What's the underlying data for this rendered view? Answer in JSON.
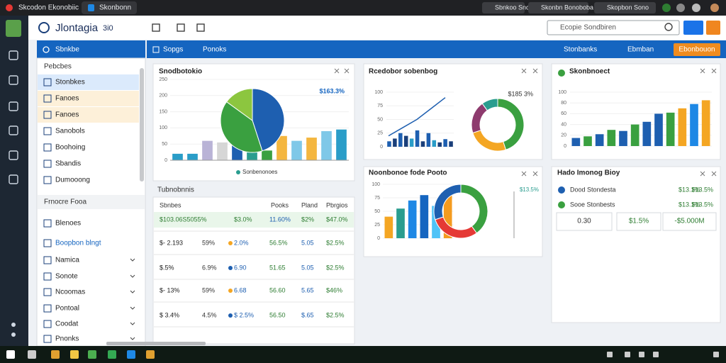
{
  "browser": {
    "tabs": [
      "Skcodon Ekonobiic",
      "Skonbonn"
    ],
    "right_tabs": [
      "Sbnkoo Snon",
      "Skonbn Bonoboba",
      "Skopbon Sono"
    ]
  },
  "header": {
    "title": "Jlontagia",
    "version": "3i0",
    "search": "Ecopie Sondbiren"
  },
  "toolbar": {
    "panel": "Sbnkbe",
    "tabs": [
      "Sopgs",
      "Ponoks"
    ],
    "right": [
      "Stonbanks",
      "Ebmban"
    ],
    "button": "Ebonbouon"
  },
  "sidebar": {
    "heading": "Pebcbes",
    "items": [
      "Stonbkes",
      "Fanoes",
      "Fanoes",
      "Sanobols",
      "Boohoing",
      "Sbandis",
      "Dumooong"
    ],
    "section": "Frnocre Fooa",
    "items2": [
      "Blenoes",
      "Boopbon blngt",
      "Namica",
      "Sonote",
      "Ncoomas",
      "Pontoal",
      "Coodat",
      "Pnonks"
    ]
  },
  "cards": [
    {
      "title": "Snodbotokio",
      "label": "$163.3%",
      "legend": "Sonbenonoes",
      "bars": {
        "values": [
          20,
          20,
          60,
          55,
          50,
          35,
          30,
          75,
          60,
          70,
          90,
          95
        ],
        "colors": [
          "#2a9dc8",
          "#2a9dc8",
          "#b9b3d6",
          "#d6d6d6",
          "#1e5fb0",
          "#2a9d8f",
          "#3aa040",
          "#f4b63f",
          "#7fc8e8",
          "#f4b63f",
          "#7fc8e8",
          "#2a9dc8"
        ],
        "ylim": [
          0,
          250
        ],
        "yticks": [
          0,
          50,
          100,
          150,
          200,
          250
        ]
      },
      "pie": {
        "values": [
          45,
          40,
          15
        ],
        "colors": [
          "#1e5fb0",
          "#3aa040",
          "#8cc63f"
        ]
      }
    },
    {
      "title": "Rcedobor sobenbog",
      "label": "$185 3%",
      "line": {
        "values": [
          20,
          35,
          50,
          70,
          90
        ],
        "color": "#1e5fb0"
      },
      "bars": {
        "values": [
          10,
          15,
          25,
          20,
          15,
          30,
          10,
          25,
          12,
          8,
          14,
          10
        ],
        "colors": [
          "#1e5fb0",
          "#1a3f7a",
          "#1e5fb0",
          "#1a3f7a",
          "#2a9dc8",
          "#1e5fb0",
          "#1a3f7a",
          "#1e5fb0",
          "#2a9dc8",
          "#1a3f7a",
          "#1e5fb0",
          "#1a3f7a"
        ],
        "ylim": [
          0,
          100
        ],
        "yticks": [
          0,
          25,
          50,
          75,
          100
        ]
      },
      "pie": {
        "values": [
          45,
          25,
          20,
          10
        ],
        "colors": [
          "#3aa040",
          "#f4a623",
          "#8e3b6e",
          "#2a9d8f"
        ]
      }
    },
    {
      "title": "Skonbnoect",
      "bars": {
        "values": [
          15,
          18,
          22,
          30,
          28,
          40,
          45,
          60,
          62,
          70,
          78,
          85
        ],
        "colors": [
          "#1e5fb0",
          "#3aa040",
          "#1e5fb0",
          "#3aa040",
          "#1e5fb0",
          "#3aa040",
          "#1e5fb0",
          "#1e5fb0",
          "#3aa040",
          "#f4a623",
          "#1e88e5",
          "#f4a623"
        ],
        "ylim": [
          0,
          100
        ],
        "yticks": [
          0,
          20,
          40,
          60,
          80,
          100
        ]
      }
    },
    {
      "title": "Noonbonoe fode Pooto",
      "label": "$13.5%",
      "bars": {
        "values": [
          40,
          55,
          70,
          80,
          60,
          90
        ],
        "colors": [
          "#f4a623",
          "#2a9d8f",
          "#1e88e5",
          "#1565c0",
          "#4fc3f7",
          "#f49b1f"
        ],
        "ylim": [
          0,
          100
        ],
        "yticks": [
          0,
          25,
          50,
          75,
          100
        ]
      },
      "pie": {
        "values": [
          40,
          30,
          30
        ],
        "colors": [
          "#3aa040",
          "#e53935",
          "#1e5fb0"
        ]
      }
    }
  ],
  "table": {
    "title": "Tubnobnnis",
    "headers": [
      "Sbnbes",
      "Pooks",
      "Pland",
      "Pbrgios"
    ],
    "rows": [
      [
        "$103.06S5055%",
        "$3.0%",
        "11.60%",
        "$2%",
        "$47.0%"
      ],
      [
        "$- 2.193",
        "59%",
        "2.0%",
        "56.5%",
        "5.05",
        "$2.5%"
      ],
      [
        "$.5%",
        "6.9%",
        "6.90",
        "51.65",
        "5.05",
        "$2.5%"
      ],
      [
        "$- 13%",
        "59%",
        "6.68",
        "56.60",
        "5.65",
        "$46%"
      ],
      [
        "$ 3.4%",
        "4.5%",
        "$ 2.5%",
        "56.50",
        "$.65",
        "$2.5%"
      ]
    ]
  },
  "summary": {
    "title": "Hado Imonog Bioy",
    "rows": [
      {
        "label": "Dood Stondesta",
        "value": "$13.1%",
        "change": "$13.5%"
      },
      {
        "label": "Sooe Stonbests",
        "value": "$13.1%",
        "change": "$13.5%"
      }
    ],
    "stats": [
      "0.30",
      "$1.5%",
      "-$5.000M"
    ]
  }
}
